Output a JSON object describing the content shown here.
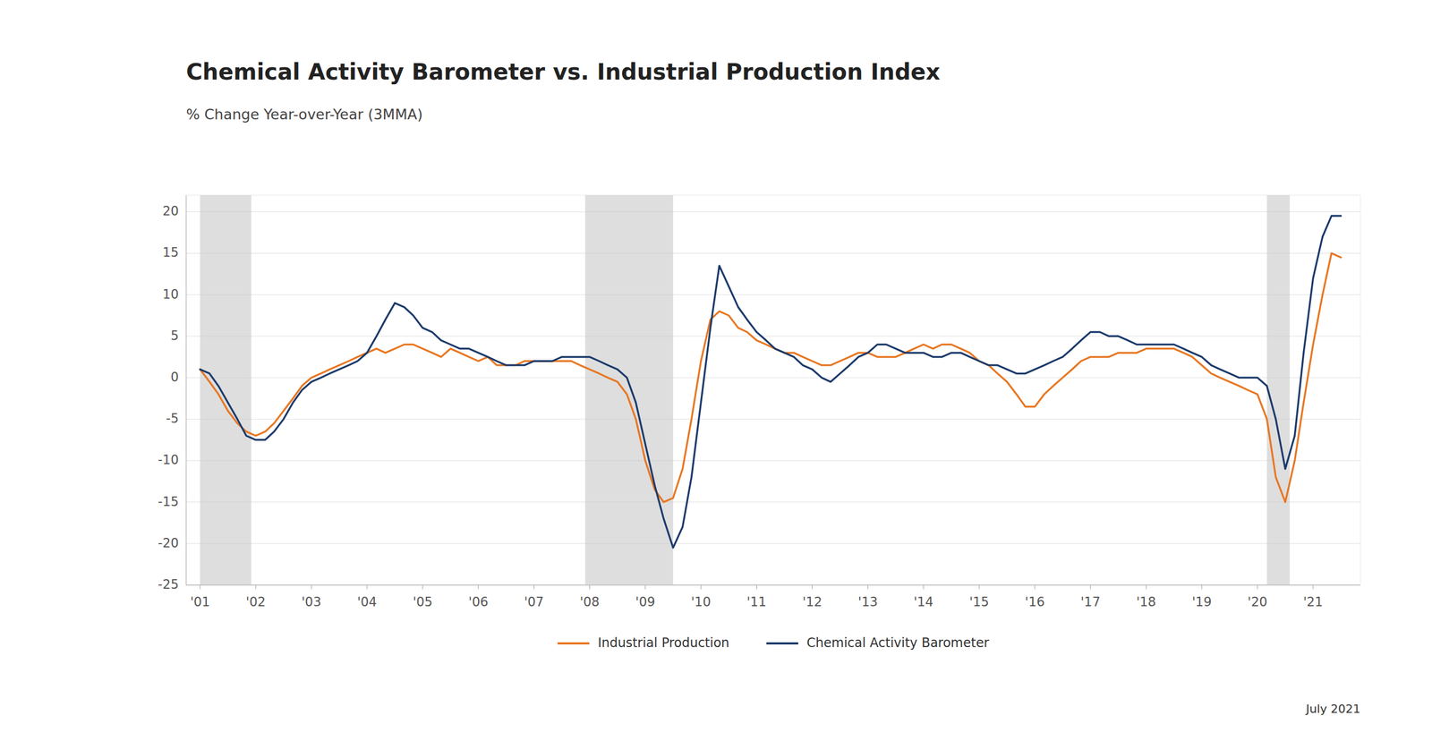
{
  "chart_data": {
    "type": "line",
    "title": "Chemical Activity Barometer vs. Industrial Production Index",
    "subtitle": "% Change Year-over-Year (3MMA)",
    "footer": "July 2021",
    "x": [
      2001.0,
      2001.17,
      2001.33,
      2001.5,
      2001.67,
      2001.83,
      2002.0,
      2002.17,
      2002.33,
      2002.5,
      2002.67,
      2002.83,
      2003.0,
      2003.17,
      2003.33,
      2003.5,
      2003.67,
      2003.83,
      2004.0,
      2004.17,
      2004.33,
      2004.5,
      2004.67,
      2004.83,
      2005.0,
      2005.17,
      2005.33,
      2005.5,
      2005.67,
      2005.83,
      2006.0,
      2006.17,
      2006.33,
      2006.5,
      2006.67,
      2006.83,
      2007.0,
      2007.17,
      2007.33,
      2007.5,
      2007.67,
      2007.83,
      2008.0,
      2008.17,
      2008.33,
      2008.5,
      2008.67,
      2008.83,
      2009.0,
      2009.17,
      2009.33,
      2009.5,
      2009.67,
      2009.83,
      2010.0,
      2010.17,
      2010.33,
      2010.5,
      2010.67,
      2010.83,
      2011.0,
      2011.17,
      2011.33,
      2011.5,
      2011.67,
      2011.83,
      2012.0,
      2012.17,
      2012.33,
      2012.5,
      2012.67,
      2012.83,
      2013.0,
      2013.17,
      2013.33,
      2013.5,
      2013.67,
      2013.83,
      2014.0,
      2014.17,
      2014.33,
      2014.5,
      2014.67,
      2014.83,
      2015.0,
      2015.17,
      2015.33,
      2015.5,
      2015.67,
      2015.83,
      2016.0,
      2016.17,
      2016.33,
      2016.5,
      2016.67,
      2016.83,
      2017.0,
      2017.17,
      2017.33,
      2017.5,
      2017.67,
      2017.83,
      2018.0,
      2018.17,
      2018.33,
      2018.5,
      2018.67,
      2018.83,
      2019.0,
      2019.17,
      2019.33,
      2019.5,
      2019.67,
      2019.83,
      2020.0,
      2020.17,
      2020.33,
      2020.5,
      2020.67,
      2020.83,
      2021.0,
      2021.17,
      2021.33,
      2021.5
    ],
    "series": [
      {
        "name": "Industrial Production",
        "color": "#e87722",
        "values": [
          1.0,
          -0.5,
          -2.0,
          -4.0,
          -5.5,
          -6.5,
          -7.0,
          -6.5,
          -5.5,
          -4.0,
          -2.5,
          -1.0,
          0.0,
          0.5,
          1.0,
          1.5,
          2.0,
          2.5,
          3.0,
          3.5,
          3.0,
          3.5,
          4.0,
          4.0,
          3.5,
          3.0,
          2.5,
          3.5,
          3.0,
          2.5,
          2.0,
          2.5,
          1.5,
          1.5,
          1.5,
          2.0,
          2.0,
          2.0,
          2.0,
          2.0,
          2.0,
          1.5,
          1.0,
          0.5,
          0.0,
          -0.5,
          -2.0,
          -5.0,
          -10.0,
          -13.5,
          -15.0,
          -14.5,
          -11.0,
          -5.0,
          2.0,
          7.0,
          8.0,
          7.5,
          6.0,
          5.5,
          4.5,
          4.0,
          3.5,
          3.0,
          3.0,
          2.5,
          2.0,
          1.5,
          1.5,
          2.0,
          2.5,
          3.0,
          3.0,
          2.5,
          2.5,
          2.5,
          3.0,
          3.5,
          4.0,
          3.5,
          4.0,
          4.0,
          3.5,
          3.0,
          2.0,
          1.5,
          0.5,
          -0.5,
          -2.0,
          -3.5,
          -3.5,
          -2.0,
          -1.0,
          0.0,
          1.0,
          2.0,
          2.5,
          2.5,
          2.5,
          3.0,
          3.0,
          3.0,
          3.5,
          3.5,
          3.5,
          3.5,
          3.0,
          2.5,
          1.5,
          0.5,
          0.0,
          -0.5,
          -1.0,
          -1.5,
          -2.0,
          -5.0,
          -12.0,
          -15.0,
          -10.0,
          -3.0,
          4.0,
          10.0,
          15.0,
          14.5
        ]
      },
      {
        "name": "Chemical Activity Barometer",
        "color": "#1b3a6b",
        "values": [
          1.0,
          0.5,
          -1.0,
          -3.0,
          -5.0,
          -7.0,
          -7.5,
          -7.5,
          -6.5,
          -5.0,
          -3.0,
          -1.5,
          -0.5,
          0.0,
          0.5,
          1.0,
          1.5,
          2.0,
          3.0,
          5.0,
          7.0,
          9.0,
          8.5,
          7.5,
          6.0,
          5.5,
          4.5,
          4.0,
          3.5,
          3.5,
          3.0,
          2.5,
          2.0,
          1.5,
          1.5,
          1.5,
          2.0,
          2.0,
          2.0,
          2.5,
          2.5,
          2.5,
          2.5,
          2.0,
          1.5,
          1.0,
          0.0,
          -3.0,
          -8.0,
          -13.0,
          -17.0,
          -20.5,
          -18.0,
          -12.0,
          -3.0,
          6.0,
          13.5,
          11.0,
          8.5,
          7.0,
          5.5,
          4.5,
          3.5,
          3.0,
          2.5,
          1.5,
          1.0,
          0.0,
          -0.5,
          0.5,
          1.5,
          2.5,
          3.0,
          4.0,
          4.0,
          3.5,
          3.0,
          3.0,
          3.0,
          2.5,
          2.5,
          3.0,
          3.0,
          2.5,
          2.0,
          1.5,
          1.5,
          1.0,
          0.5,
          0.5,
          1.0,
          1.5,
          2.0,
          2.5,
          3.5,
          4.5,
          5.5,
          5.5,
          5.0,
          5.0,
          4.5,
          4.0,
          4.0,
          4.0,
          4.0,
          4.0,
          3.5,
          3.0,
          2.5,
          1.5,
          1.0,
          0.5,
          0.0,
          0.0,
          0.0,
          -1.0,
          -5.0,
          -11.0,
          -7.0,
          3.0,
          12.0,
          17.0,
          19.5,
          19.5
        ]
      }
    ],
    "recession_bands": [
      [
        2001.0,
        2001.92
      ],
      [
        2007.92,
        2009.5
      ],
      [
        2020.17,
        2020.58
      ]
    ],
    "xlim": [
      2000.75,
      2021.85
    ],
    "xticks": [
      {
        "value": 2001,
        "label": "'01"
      },
      {
        "value": 2002,
        "label": "'02"
      },
      {
        "value": 2003,
        "label": "'03"
      },
      {
        "value": 2004,
        "label": "'04"
      },
      {
        "value": 2005,
        "label": "'05"
      },
      {
        "value": 2006,
        "label": "'06"
      },
      {
        "value": 2007,
        "label": "'07"
      },
      {
        "value": 2008,
        "label": "'08"
      },
      {
        "value": 2009,
        "label": "'09"
      },
      {
        "value": 2010,
        "label": "'10"
      },
      {
        "value": 2011,
        "label": "'11"
      },
      {
        "value": 2012,
        "label": "'12"
      },
      {
        "value": 2013,
        "label": "'13"
      },
      {
        "value": 2014,
        "label": "'14"
      },
      {
        "value": 2015,
        "label": "'15"
      },
      {
        "value": 2016,
        "label": "'16"
      },
      {
        "value": 2017,
        "label": "'17"
      },
      {
        "value": 2018,
        "label": "'18"
      },
      {
        "value": 2019,
        "label": "'19"
      },
      {
        "value": 2020,
        "label": "'20"
      },
      {
        "value": 2021,
        "label": "'21"
      }
    ],
    "ylim": [
      -25,
      22
    ],
    "yticks": [
      -25,
      -20,
      -15,
      -10,
      -5,
      0,
      5,
      10,
      15,
      20
    ],
    "grid": true,
    "legend": "bottom"
  }
}
